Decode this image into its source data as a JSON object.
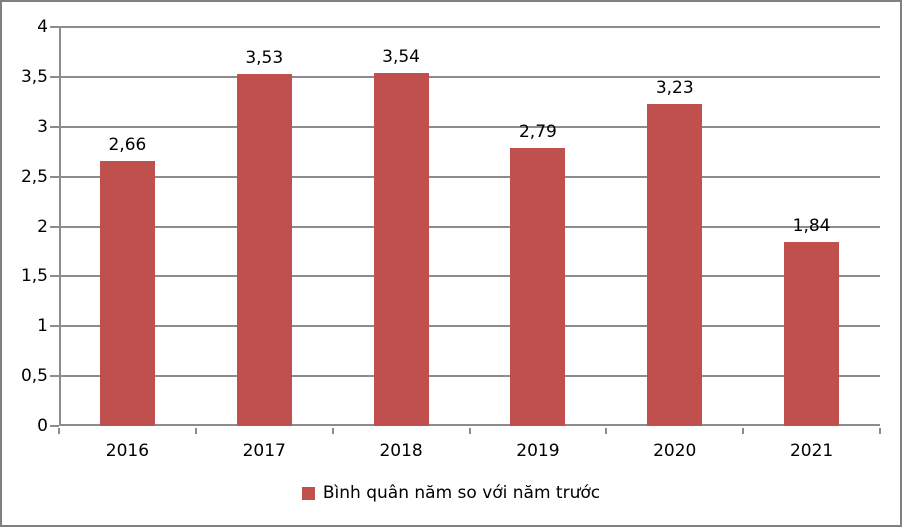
{
  "chart_data": {
    "type": "bar",
    "categories": [
      "2016",
      "2017",
      "2018",
      "2019",
      "2020",
      "2021"
    ],
    "values": [
      2.66,
      3.53,
      3.54,
      2.79,
      3.23,
      1.84
    ],
    "value_labels": [
      "2,66",
      "3,53",
      "3,54",
      "2,79",
      "3,23",
      "1,84"
    ],
    "y_ticks": [
      0,
      0.5,
      1,
      1.5,
      2,
      2.5,
      3,
      3.5,
      4
    ],
    "y_tick_labels": [
      "0",
      "0,5",
      "1",
      "1,5",
      "2",
      "2,5",
      "3",
      "3,5",
      "4"
    ],
    "ylim": [
      0,
      4
    ],
    "title": "",
    "xlabel": "",
    "ylabel": "",
    "grid": true,
    "legend_position": "bottom",
    "legend": "Bình quân năm so với năm trước",
    "bar_color": "#C0504D",
    "grid_color": "#8C8C8C",
    "axis_color": "#8C8C8C",
    "border_color": "#808080",
    "text_color": "#000000"
  }
}
